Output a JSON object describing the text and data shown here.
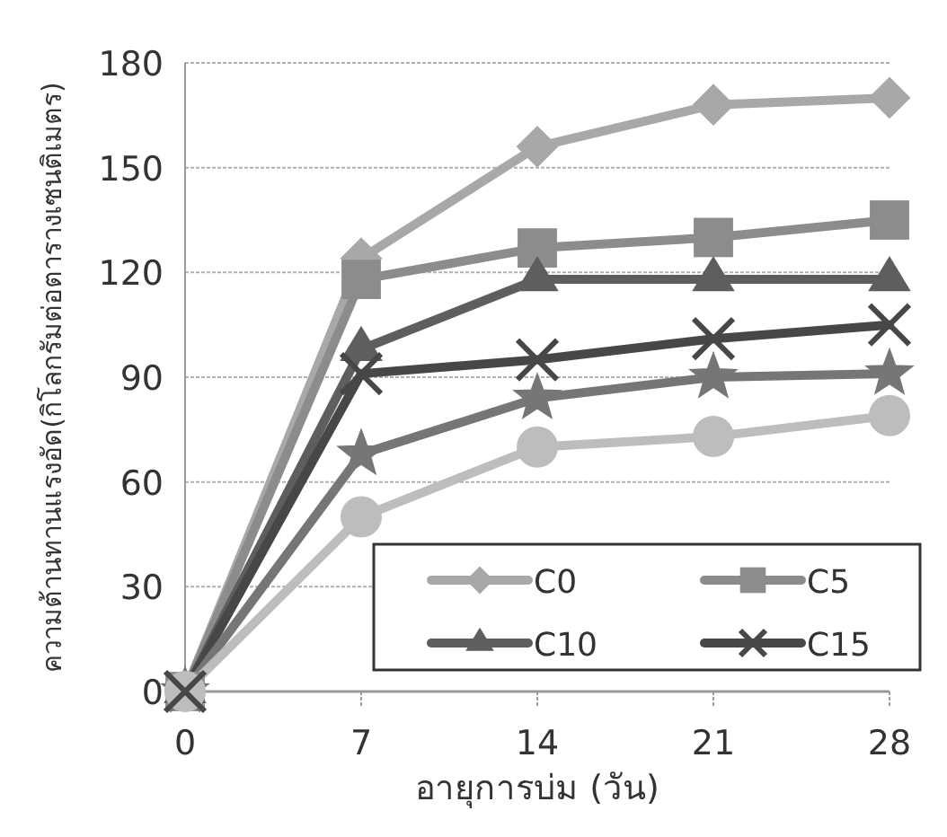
{
  "chart_data": {
    "type": "line",
    "xlabel": "อายุการบ่ม (วัน)",
    "ylabel": "ความต้านทานแรงอัด(กิโลกรัมต่อตารางเซนติเมตร)",
    "x": [
      0,
      7,
      14,
      21,
      28
    ],
    "xlim": [
      0,
      28
    ],
    "xticks": [
      0,
      7,
      14,
      21,
      28
    ],
    "ylim": [
      0,
      180
    ],
    "yticks": [
      0,
      30,
      60,
      90,
      120,
      150,
      180
    ],
    "grid": "y",
    "legend": "bottom right",
    "line_style": "solid",
    "series": [
      {
        "name": "C0",
        "color": "#a8a8a8",
        "marker": "diamond",
        "values": [
          0,
          124,
          156,
          168,
          170
        ]
      },
      {
        "name": "C5",
        "color": "#8c8c8c",
        "marker": "square",
        "values": [
          0,
          118,
          127,
          130,
          135
        ]
      },
      {
        "name": "C10",
        "color": "#5e5e5e",
        "marker": "triangle",
        "values": [
          0,
          98,
          118,
          118,
          118
        ]
      },
      {
        "name": "C15",
        "color": "#474747",
        "marker": "cross",
        "values": [
          0,
          91,
          95,
          101,
          105
        ]
      },
      {
        "color": "#767676",
        "marker": "star",
        "values": [
          0,
          68,
          84,
          90,
          91
        ]
      },
      {
        "color": "#bdbdbd",
        "marker": "circle",
        "values": [
          0,
          50,
          70,
          73,
          79
        ]
      }
    ]
  }
}
